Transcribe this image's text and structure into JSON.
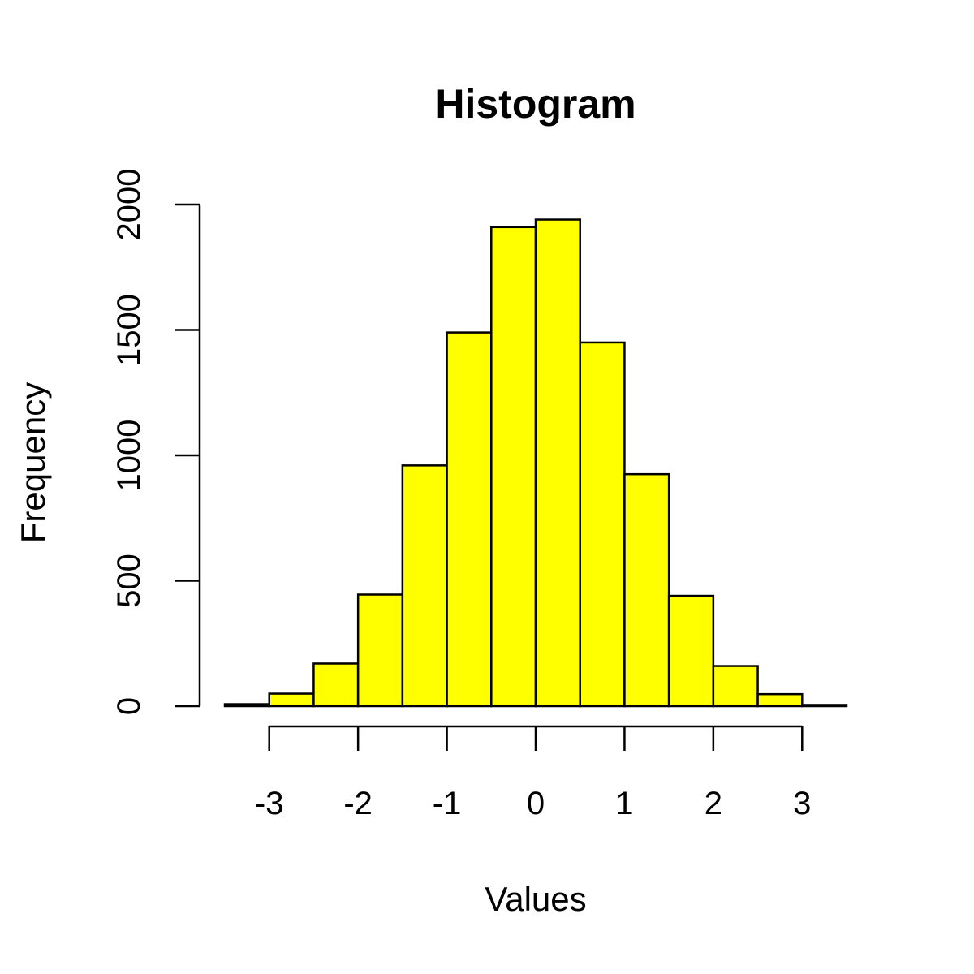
{
  "chart_data": {
    "type": "bar",
    "title": "Histogram",
    "xlabel": "Values",
    "ylabel": "Frequency",
    "bar_color": "#ffff00",
    "bins": [
      {
        "x0": -3.5,
        "x1": -3.0,
        "count": 8
      },
      {
        "x0": -3.0,
        "x1": -2.5,
        "count": 50
      },
      {
        "x0": -2.5,
        "x1": -2.0,
        "count": 170
      },
      {
        "x0": -2.0,
        "x1": -1.5,
        "count": 445
      },
      {
        "x0": -1.5,
        "x1": -1.0,
        "count": 960
      },
      {
        "x0": -1.0,
        "x1": -0.5,
        "count": 1490
      },
      {
        "x0": -0.5,
        "x1": 0.0,
        "count": 1910
      },
      {
        "x0": 0.0,
        "x1": 0.5,
        "count": 1940
      },
      {
        "x0": 0.5,
        "x1": 1.0,
        "count": 1450
      },
      {
        "x0": 1.0,
        "x1": 1.5,
        "count": 925
      },
      {
        "x0": 1.5,
        "x1": 2.0,
        "count": 440
      },
      {
        "x0": 2.0,
        "x1": 2.5,
        "count": 160
      },
      {
        "x0": 2.5,
        "x1": 3.0,
        "count": 48
      },
      {
        "x0": 3.0,
        "x1": 3.5,
        "count": 5
      }
    ],
    "xlim": [
      -3.5,
      3.5
    ],
    "ylim": [
      0,
      2000
    ],
    "xticks": [
      -3,
      -2,
      -1,
      0,
      1,
      2,
      3
    ],
    "xtick_labels": [
      "-3",
      "-2",
      "-1",
      "0",
      "1",
      "2",
      "3"
    ],
    "yticks": [
      0,
      500,
      1000,
      1500,
      2000
    ],
    "ytick_labels": [
      "0",
      "500",
      "1000",
      "1500",
      "2000"
    ],
    "grid": false,
    "legend": "none"
  }
}
